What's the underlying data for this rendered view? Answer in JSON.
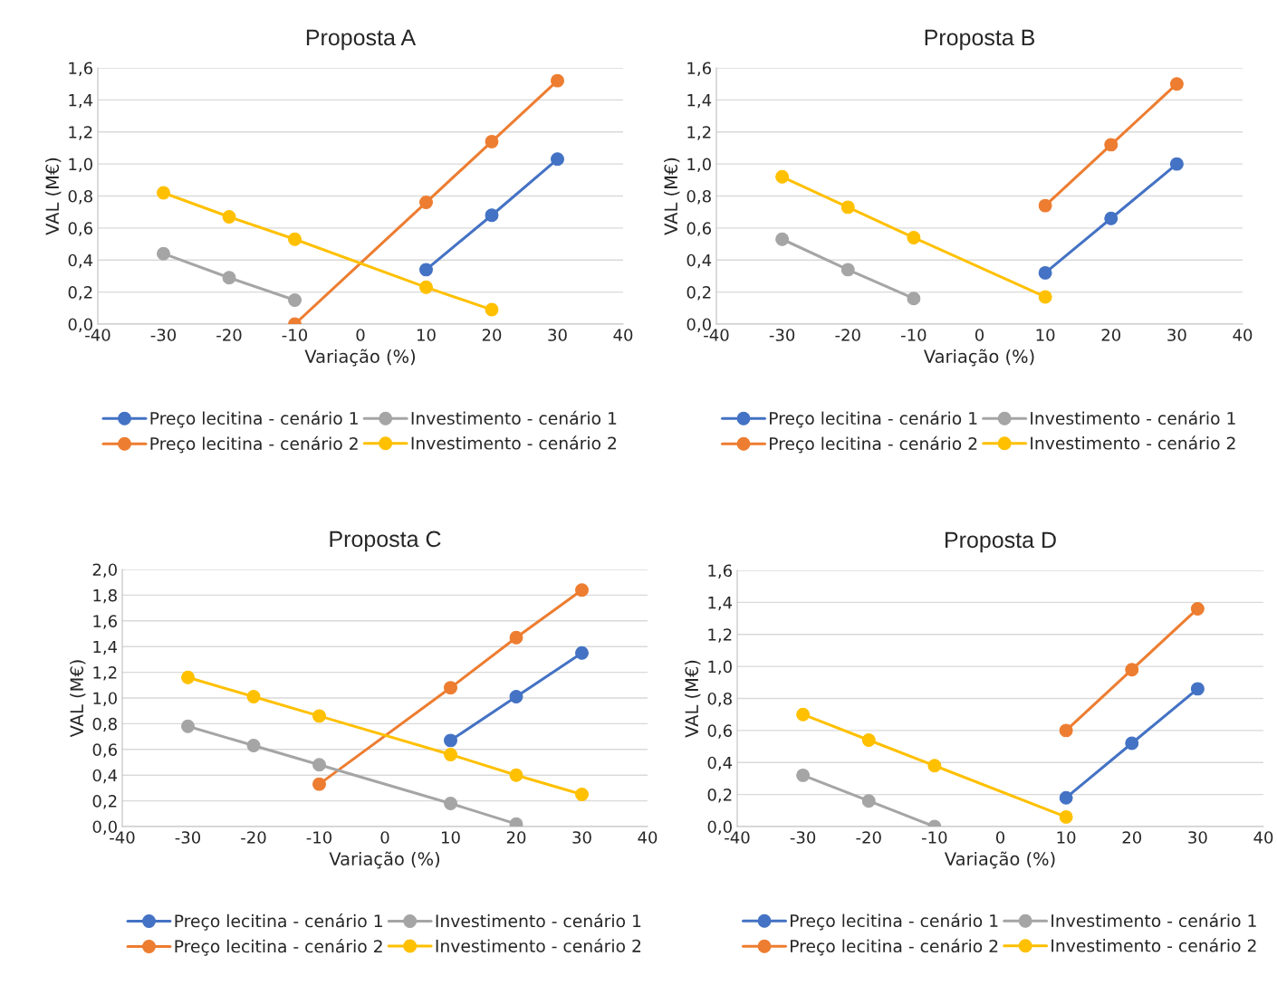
{
  "chart_data": [
    {
      "type": "line",
      "title": "Proposta A",
      "xlabel": "Variação (%)",
      "ylabel": "VAL (M€)",
      "xlim": [
        -40,
        40
      ],
      "xticks": [
        -40,
        -30,
        -20,
        -10,
        0,
        10,
        20,
        30,
        40
      ],
      "ylim": [
        0,
        1.6
      ],
      "yticks": [
        {
          "value": 0,
          "label": "0,0"
        },
        {
          "value": 0.2,
          "label": "0,2"
        },
        {
          "value": 0.4,
          "label": "0,4"
        },
        {
          "value": 0.6,
          "label": "0,6"
        },
        {
          "value": 0.8,
          "label": "0,8"
        },
        {
          "value": 1.0,
          "label": "1,0"
        },
        {
          "value": 1.2,
          "label": "1,2"
        },
        {
          "value": 1.4,
          "label": "1,4"
        },
        {
          "value": 1.6,
          "label": "1,6"
        }
      ],
      "grid": "y",
      "legend": "bottom",
      "marker": "circle",
      "line_style": "solid",
      "series": [
        {
          "name": "Preço lecitina - cenário 1",
          "color": "#4472c4",
          "x": [
            10,
            20,
            30
          ],
          "values": [
            0.34,
            0.68,
            1.03
          ]
        },
        {
          "name": "Preço lecitina - cenário 2",
          "color": "#ed7d31",
          "x": [
            -10,
            10,
            20,
            30
          ],
          "values": [
            0.0,
            0.76,
            1.14,
            1.52
          ]
        },
        {
          "name": "Investimento - cenário 1",
          "color": "#a5a5a5",
          "x": [
            -30,
            -20,
            -10
          ],
          "values": [
            0.44,
            0.29,
            0.15
          ]
        },
        {
          "name": "Investimento - cenário 2",
          "color": "#ffc000",
          "x": [
            -30,
            -20,
            -10,
            10,
            20
          ],
          "values": [
            0.82,
            0.67,
            0.53,
            0.23,
            0.09
          ]
        }
      ]
    },
    {
      "type": "line",
      "title": "Proposta B",
      "xlabel": "Variação (%)",
      "ylabel": "VAL (M€)",
      "xlim": [
        -40,
        40
      ],
      "xticks": [
        -40,
        -30,
        -20,
        -10,
        0,
        10,
        20,
        30,
        40
      ],
      "ylim": [
        0,
        1.6
      ],
      "yticks": [
        {
          "value": 0,
          "label": "0,0"
        },
        {
          "value": 0.2,
          "label": "0,2"
        },
        {
          "value": 0.4,
          "label": "0,4"
        },
        {
          "value": 0.6,
          "label": "0,6"
        },
        {
          "value": 0.8,
          "label": "0,8"
        },
        {
          "value": 1.0,
          "label": "1,0"
        },
        {
          "value": 1.2,
          "label": "1,2"
        },
        {
          "value": 1.4,
          "label": "1,4"
        },
        {
          "value": 1.6,
          "label": "1,6"
        }
      ],
      "grid": "y",
      "legend": "bottom",
      "marker": "circle",
      "line_style": "solid",
      "series": [
        {
          "name": "Preço lecitina - cenário 1",
          "color": "#4472c4",
          "x": [
            10,
            20,
            30
          ],
          "values": [
            0.32,
            0.66,
            1.0
          ]
        },
        {
          "name": "Preço lecitina - cenário 2",
          "color": "#ed7d31",
          "x": [
            10,
            20,
            30
          ],
          "values": [
            0.74,
            1.12,
            1.5
          ]
        },
        {
          "name": "Investimento - cenário 1",
          "color": "#a5a5a5",
          "x": [
            -30,
            -20,
            -10
          ],
          "values": [
            0.53,
            0.34,
            0.16
          ]
        },
        {
          "name": "Investimento - cenário 2",
          "color": "#ffc000",
          "x": [
            -30,
            -20,
            -10,
            10
          ],
          "values": [
            0.92,
            0.73,
            0.54,
            0.17
          ]
        }
      ]
    },
    {
      "type": "line",
      "title": "Proposta C",
      "xlabel": "Variação (%)",
      "ylabel": "VAL (M€)",
      "xlim": [
        -40,
        40
      ],
      "xticks": [
        -40,
        -30,
        -20,
        -10,
        0,
        10,
        20,
        30,
        40
      ],
      "ylim": [
        0,
        2.0
      ],
      "yticks": [
        {
          "value": 0,
          "label": "0,0"
        },
        {
          "value": 0.2,
          "label": "0,2"
        },
        {
          "value": 0.4,
          "label": "0,4"
        },
        {
          "value": 0.6,
          "label": "0,6"
        },
        {
          "value": 0.8,
          "label": "0,8"
        },
        {
          "value": 1.0,
          "label": "1,0"
        },
        {
          "value": 1.2,
          "label": "1,2"
        },
        {
          "value": 1.4,
          "label": "1,4"
        },
        {
          "value": 1.6,
          "label": "1,6"
        },
        {
          "value": 1.8,
          "label": "1,8"
        },
        {
          "value": 2.0,
          "label": "2,0"
        }
      ],
      "grid": "y",
      "legend": "bottom",
      "marker": "circle",
      "line_style": "solid",
      "series": [
        {
          "name": "Preço lecitina - cenário 1",
          "color": "#4472c4",
          "x": [
            10,
            20,
            30
          ],
          "values": [
            0.67,
            1.01,
            1.35
          ]
        },
        {
          "name": "Preço lecitina - cenário 2",
          "color": "#ed7d31",
          "x": [
            -10,
            10,
            20,
            30
          ],
          "values": [
            0.33,
            1.08,
            1.47,
            1.84
          ]
        },
        {
          "name": "Investimento - cenário 1",
          "color": "#a5a5a5",
          "x": [
            -30,
            -20,
            -10,
            10,
            20
          ],
          "values": [
            0.78,
            0.63,
            0.48,
            0.18,
            0.02
          ]
        },
        {
          "name": "Investimento - cenário 2",
          "color": "#ffc000",
          "x": [
            -30,
            -20,
            -10,
            10,
            20,
            30
          ],
          "values": [
            1.16,
            1.01,
            0.86,
            0.56,
            0.4,
            0.25
          ]
        }
      ]
    },
    {
      "type": "line",
      "title": "Proposta D",
      "xlabel": "Variação (%)",
      "ylabel": "VAL (M€)",
      "xlim": [
        -40,
        40
      ],
      "xticks": [
        -40,
        -30,
        -20,
        -10,
        0,
        10,
        20,
        30,
        40
      ],
      "ylim": [
        0,
        1.6
      ],
      "yticks": [
        {
          "value": 0,
          "label": "0,0"
        },
        {
          "value": 0.2,
          "label": "0,2"
        },
        {
          "value": 0.4,
          "label": "0,4"
        },
        {
          "value": 0.6,
          "label": "0,6"
        },
        {
          "value": 0.8,
          "label": "0,8"
        },
        {
          "value": 1.0,
          "label": "1,0"
        },
        {
          "value": 1.2,
          "label": "1,2"
        },
        {
          "value": 1.4,
          "label": "1,4"
        },
        {
          "value": 1.6,
          "label": "1,6"
        }
      ],
      "grid": "y",
      "legend": "bottom",
      "marker": "circle",
      "line_style": "solid",
      "series": [
        {
          "name": "Preço lecitina - cenário 1",
          "color": "#4472c4",
          "x": [
            10,
            20,
            30
          ],
          "values": [
            0.18,
            0.52,
            0.86
          ]
        },
        {
          "name": "Preço lecitina - cenário 2",
          "color": "#ed7d31",
          "x": [
            10,
            20,
            30
          ],
          "values": [
            0.6,
            0.98,
            1.36
          ]
        },
        {
          "name": "Investimento - cenário 1",
          "color": "#a5a5a5",
          "x": [
            -30,
            -20,
            -10
          ],
          "values": [
            0.32,
            0.16,
            0.0
          ]
        },
        {
          "name": "Investimento - cenário 2",
          "color": "#ffc000",
          "x": [
            -30,
            -20,
            -10,
            10
          ],
          "values": [
            0.7,
            0.54,
            0.38,
            0.06
          ]
        }
      ]
    }
  ]
}
